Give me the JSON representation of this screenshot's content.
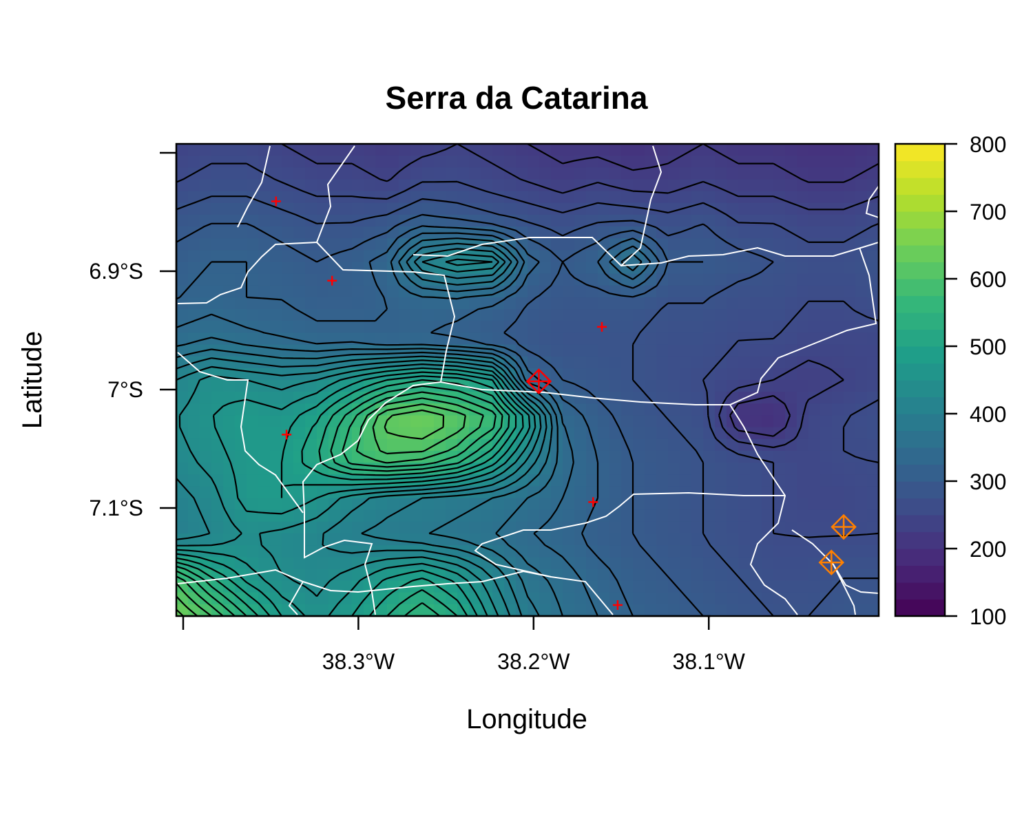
{
  "title": "Serra da Catarina",
  "chart_data": {
    "type": "heatmap",
    "title": "Serra da Catarina",
    "xlabel": "Longitude",
    "ylabel": "Latitude",
    "x_range": [
      -38.4,
      -38.0
    ],
    "y_range": [
      -7.13,
      -6.86
    ],
    "x_ticks": [
      {
        "value": -38.3,
        "label": "38.3°W"
      },
      {
        "value": -38.2,
        "label": "38.2°W"
      },
      {
        "value": -38.1,
        "label": "38.1°W"
      }
    ],
    "x_ticks_unlabeled": [
      -38.4
    ],
    "y_ticks": [
      {
        "value": -6.9,
        "label": "6.9°S"
      },
      {
        "value": -7.0,
        "label": "7°S"
      },
      {
        "value": -7.1,
        "label": "7.1°S"
      }
    ],
    "y_ticks_unlabeled": [
      -6.8
    ],
    "colorbar": {
      "min": 100,
      "max": 800,
      "ticks": [
        "800",
        "700",
        "600",
        "500",
        "400",
        "300",
        "200",
        "100"
      ],
      "palette": [
        "#440154",
        "#482878",
        "#3e4a89",
        "#31688e",
        "#26828e",
        "#1f9e89",
        "#35b779",
        "#6ece58",
        "#b5de2b",
        "#fde725"
      ]
    },
    "elevation_rows": [
      {
        "lat": -6.8,
        "values": [
          240,
          250,
          250,
          240,
          230,
          230,
          220,
          230,
          240,
          230,
          220,
          210,
          210,
          200,
          210,
          220,
          210,
          210,
          200,
          200,
          210
        ]
      },
      {
        "lat": -6.83,
        "values": [
          260,
          270,
          270,
          260,
          250,
          250,
          240,
          260,
          260,
          250,
          240,
          230,
          240,
          230,
          230,
          240,
          230,
          230,
          220,
          220,
          230
        ]
      },
      {
        "lat": -6.86,
        "values": [
          290,
          300,
          300,
          290,
          280,
          280,
          290,
          310,
          300,
          290,
          280,
          270,
          280,
          280,
          270,
          280,
          260,
          260,
          250,
          250,
          260
        ]
      },
      {
        "lat": -6.89,
        "values": [
          310,
          320,
          320,
          310,
          300,
          310,
          330,
          420,
          450,
          440,
          330,
          300,
          320,
          380,
          300,
          300,
          290,
          280,
          270,
          270,
          280
        ]
      },
      {
        "lat": -6.92,
        "values": [
          320,
          330,
          320,
          320,
          310,
          310,
          320,
          330,
          330,
          320,
          300,
          290,
          290,
          290,
          280,
          280,
          270,
          270,
          260,
          260,
          270
        ]
      },
      {
        "lat": -6.95,
        "values": [
          350,
          360,
          350,
          340,
          330,
          330,
          320,
          320,
          310,
          300,
          290,
          280,
          280,
          280,
          270,
          270,
          260,
          260,
          250,
          250,
          250
        ]
      },
      {
        "lat": -6.98,
        "values": [
          420,
          450,
          440,
          430,
          440,
          470,
          500,
          520,
          510,
          480,
          330,
          300,
          290,
          280,
          270,
          260,
          250,
          240,
          230,
          240,
          250
        ]
      },
      {
        "lat": -7.01,
        "values": [
          440,
          460,
          480,
          470,
          500,
          560,
          630,
          650,
          620,
          580,
          480,
          340,
          310,
          290,
          280,
          270,
          200,
          190,
          250,
          260,
          270
        ]
      },
      {
        "lat": -7.04,
        "values": [
          430,
          450,
          470,
          480,
          520,
          580,
          600,
          590,
          560,
          500,
          420,
          350,
          320,
          300,
          290,
          280,
          270,
          260,
          250,
          260,
          260
        ]
      },
      {
        "lat": -7.07,
        "values": [
          410,
          430,
          470,
          480,
          460,
          430,
          410,
          400,
          390,
          380,
          360,
          340,
          320,
          300,
          290,
          280,
          270,
          260,
          250,
          250,
          260
        ]
      },
      {
        "lat": -7.1,
        "values": [
          400,
          420,
          440,
          430,
          420,
          400,
          390,
          380,
          370,
          360,
          340,
          330,
          310,
          300,
          290,
          280,
          270,
          260,
          260,
          260,
          260
        ]
      },
      {
        "lat": -7.13,
        "values": [
          590,
          520,
          470,
          440,
          430,
          450,
          480,
          500,
          470,
          420,
          370,
          350,
          330,
          310,
          300,
          290,
          280,
          270,
          270,
          280,
          280
        ]
      },
      {
        "lat": -7.16,
        "values": [
          650,
          600,
          540,
          480,
          450,
          480,
          520,
          560,
          520,
          450,
          390,
          360,
          340,
          320,
          310,
          300,
          290,
          280,
          280,
          290,
          290
        ]
      }
    ],
    "elevation_cols_lon": [
      -38.4,
      -38.38,
      -38.36,
      -38.34,
      -38.32,
      -38.3,
      -38.28,
      -38.26,
      -38.24,
      -38.22,
      -38.2,
      -38.18,
      -38.16,
      -38.14,
      -38.12,
      -38.1,
      -38.08,
      -38.06,
      -38.04,
      -38.02,
      -38.0
    ],
    "points": [
      {
        "lon": -38.347,
        "lat": -6.841,
        "marker": "plus",
        "color": "#ff0000"
      },
      {
        "lon": -38.315,
        "lat": -6.908,
        "marker": "plus",
        "color": "#ff0000"
      },
      {
        "lon": -38.161,
        "lat": -6.947,
        "marker": "plus",
        "color": "#ff0000"
      },
      {
        "lon": -38.341,
        "lat": -7.038,
        "marker": "plus",
        "color": "#ff0000"
      },
      {
        "lon": -38.166,
        "lat": -7.095,
        "marker": "plus",
        "color": "#ff0000"
      },
      {
        "lon": -38.152,
        "lat": -7.182,
        "marker": "plus",
        "color": "#ff0000"
      },
      {
        "lon": -38.197,
        "lat": -6.993,
        "marker": "diamond-plus",
        "color": "#ff0000"
      },
      {
        "lon": -38.023,
        "lat": -7.116,
        "marker": "diamond-plus",
        "color": "#ff8000"
      },
      {
        "lon": -38.03,
        "lat": -7.146,
        "marker": "diamond-plus",
        "color": "#ff8000"
      }
    ],
    "grid": false,
    "legend_placement": "right"
  }
}
